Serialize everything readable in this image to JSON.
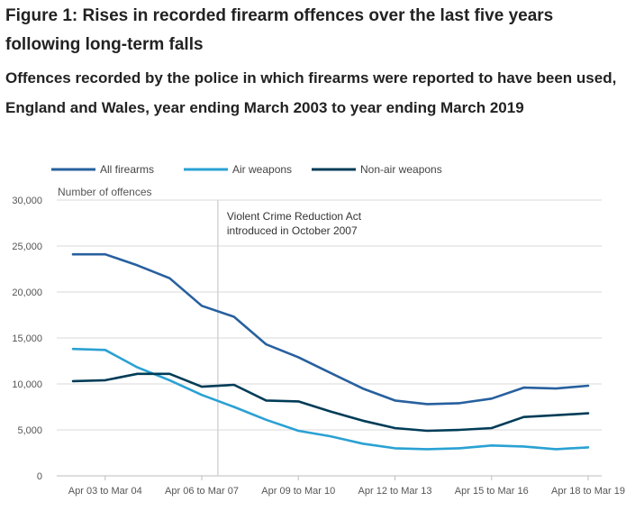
{
  "title": "Figure 1: Rises in recorded firearm offences over the last five years following long-term falls",
  "subtitle": "Offences recorded by the police in which firearms were reported to have been used, England and Wales, year ending March 2003 to year ending March 2019",
  "colors": {
    "all_firearms": "#27609e",
    "air_weapons": "#2aa1d3",
    "non_air_weapons": "#003c57",
    "grid": "#d9d9d9",
    "axis_text": "#555555",
    "annotation_line": "#cfd6dc"
  },
  "chart_data": {
    "type": "line",
    "title": "Figure 1: Rises in recorded firearm offences over the last five years following long-term falls",
    "subtitle": "Offences recorded by the police in which firearms were reported to have been used, England and Wales, year ending March 2003 to year ending March 2019",
    "xlabel": "",
    "ylabel": "Number of offences",
    "ylim": [
      0,
      30000
    ],
    "yticks": [
      0,
      5000,
      10000,
      15000,
      20000,
      25000,
      30000
    ],
    "ytick_labels": [
      "0",
      "5,000",
      "10,000",
      "15,000",
      "20,000",
      "25,000",
      "30,000"
    ],
    "grid": true,
    "legend_position": "top-left",
    "x": [
      "Apr 02 to Mar 03",
      "Apr 03 to Mar 04",
      "Apr 04 to Mar 05",
      "Apr 05 to Mar 06",
      "Apr 06 to Mar 07",
      "Apr 07 to Mar 08",
      "Apr 08 to Mar 09",
      "Apr 09 to Mar 10",
      "Apr 10 to Mar 11",
      "Apr 11 to Mar 12",
      "Apr 12 to Mar 13",
      "Apr 13 to Mar 14",
      "Apr 14 to Mar 15",
      "Apr 15 to Mar 16",
      "Apr 16 to Mar 17",
      "Apr 17 to Mar 18",
      "Apr 18 to Mar 19"
    ],
    "x_tick_labels": [
      "Apr 03 to Mar 04",
      "Apr 06 to Mar 07",
      "Apr 09 to Mar 10",
      "Apr 12 to Mar 13",
      "Apr 15 to Mar 16",
      "Apr 18 to Mar 19"
    ],
    "series": [
      {
        "name": "All firearms",
        "color_key": "all_firearms",
        "values": [
          24100,
          24100,
          22900,
          21500,
          18500,
          17300,
          14300,
          12900,
          11200,
          9500,
          8200,
          7800,
          7900,
          8400,
          9600,
          9500,
          9800
        ]
      },
      {
        "name": "Air weapons",
        "color_key": "air_weapons",
        "values": [
          13800,
          13700,
          11800,
          10400,
          8800,
          7500,
          6100,
          4900,
          4300,
          3500,
          3000,
          2900,
          3000,
          3300,
          3200,
          2900,
          3100
        ]
      },
      {
        "name": "Non-air weapons",
        "color_key": "non_air_weapons",
        "values": [
          10300,
          10400,
          11100,
          11100,
          9700,
          9900,
          8200,
          8100,
          7000,
          6000,
          5200,
          4900,
          5000,
          5200,
          6400,
          6600,
          6800
        ]
      }
    ],
    "annotations": [
      {
        "x": "Apr 07 to Mar 08",
        "text_lines": [
          "Violent Crime Reduction Act",
          "introduced in October 2007"
        ]
      }
    ]
  }
}
